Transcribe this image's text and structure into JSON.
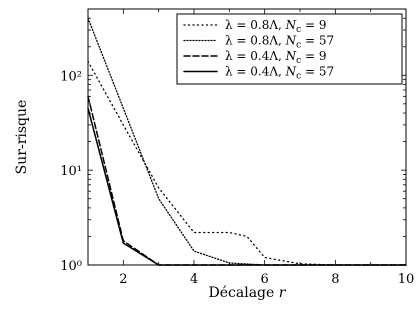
{
  "chart_data": {
    "type": "line",
    "xlabel": "Décalage",
    "xlabel_var": "r",
    "ylabel": "Sur-risque",
    "xlim": [
      1,
      10
    ],
    "ylim": [
      1,
      500
    ],
    "yscale": "log",
    "xticks": [
      2,
      4,
      6,
      8,
      10
    ],
    "xtick_labels": [
      "2",
      "4",
      "6",
      "8",
      "10"
    ],
    "yticks": [
      1,
      10,
      100
    ],
    "ytick_labels": [
      "10⁰",
      "10¹",
      "10²"
    ],
    "legend_position": "top-right",
    "series": [
      {
        "label_lambda": "λ = 0.8Λ",
        "label_nc": "N",
        "label_nc_sub": "c",
        "label_nc_value": " = 9",
        "dash": "loose-dotted",
        "x": [
          1,
          2,
          3,
          4,
          5,
          5.5,
          6,
          7,
          8,
          9,
          10
        ],
        "y": [
          140,
          30,
          6.5,
          2.2,
          2.2,
          2.0,
          1.2,
          1.03,
          1.0,
          1.0,
          1.0
        ]
      },
      {
        "label_lambda": "λ = 0.8Λ",
        "label_nc": "N",
        "label_nc_sub": "c",
        "label_nc_value": " = 57",
        "dash": "dense-dotted",
        "x": [
          1,
          2,
          3,
          4,
          5,
          6,
          7,
          8,
          9,
          10
        ],
        "y": [
          400,
          45,
          5.0,
          1.4,
          1.05,
          1.0,
          1.0,
          1.0,
          1.0,
          1.0
        ]
      },
      {
        "label_lambda": "λ = 0.4Λ",
        "label_nc": "N",
        "label_nc_sub": "c",
        "label_nc_value": " = 9",
        "dash": "dashed",
        "x": [
          1,
          2,
          3,
          4,
          5,
          6,
          7,
          8,
          9,
          10
        ],
        "y": [
          60,
          1.8,
          1.0,
          1.0,
          1.0,
          1.0,
          1.0,
          1.0,
          1.0,
          1.0
        ]
      },
      {
        "label_lambda": "λ = 0.4Λ",
        "label_nc": "N",
        "label_nc_sub": "c",
        "label_nc_value": " = 57",
        "dash": "solid",
        "x": [
          1,
          2,
          3,
          4,
          5,
          6,
          7,
          8,
          9,
          10
        ],
        "y": [
          45,
          1.7,
          1.0,
          1.0,
          1.0,
          1.0,
          1.0,
          1.0,
          1.0,
          1.0
        ]
      }
    ]
  }
}
